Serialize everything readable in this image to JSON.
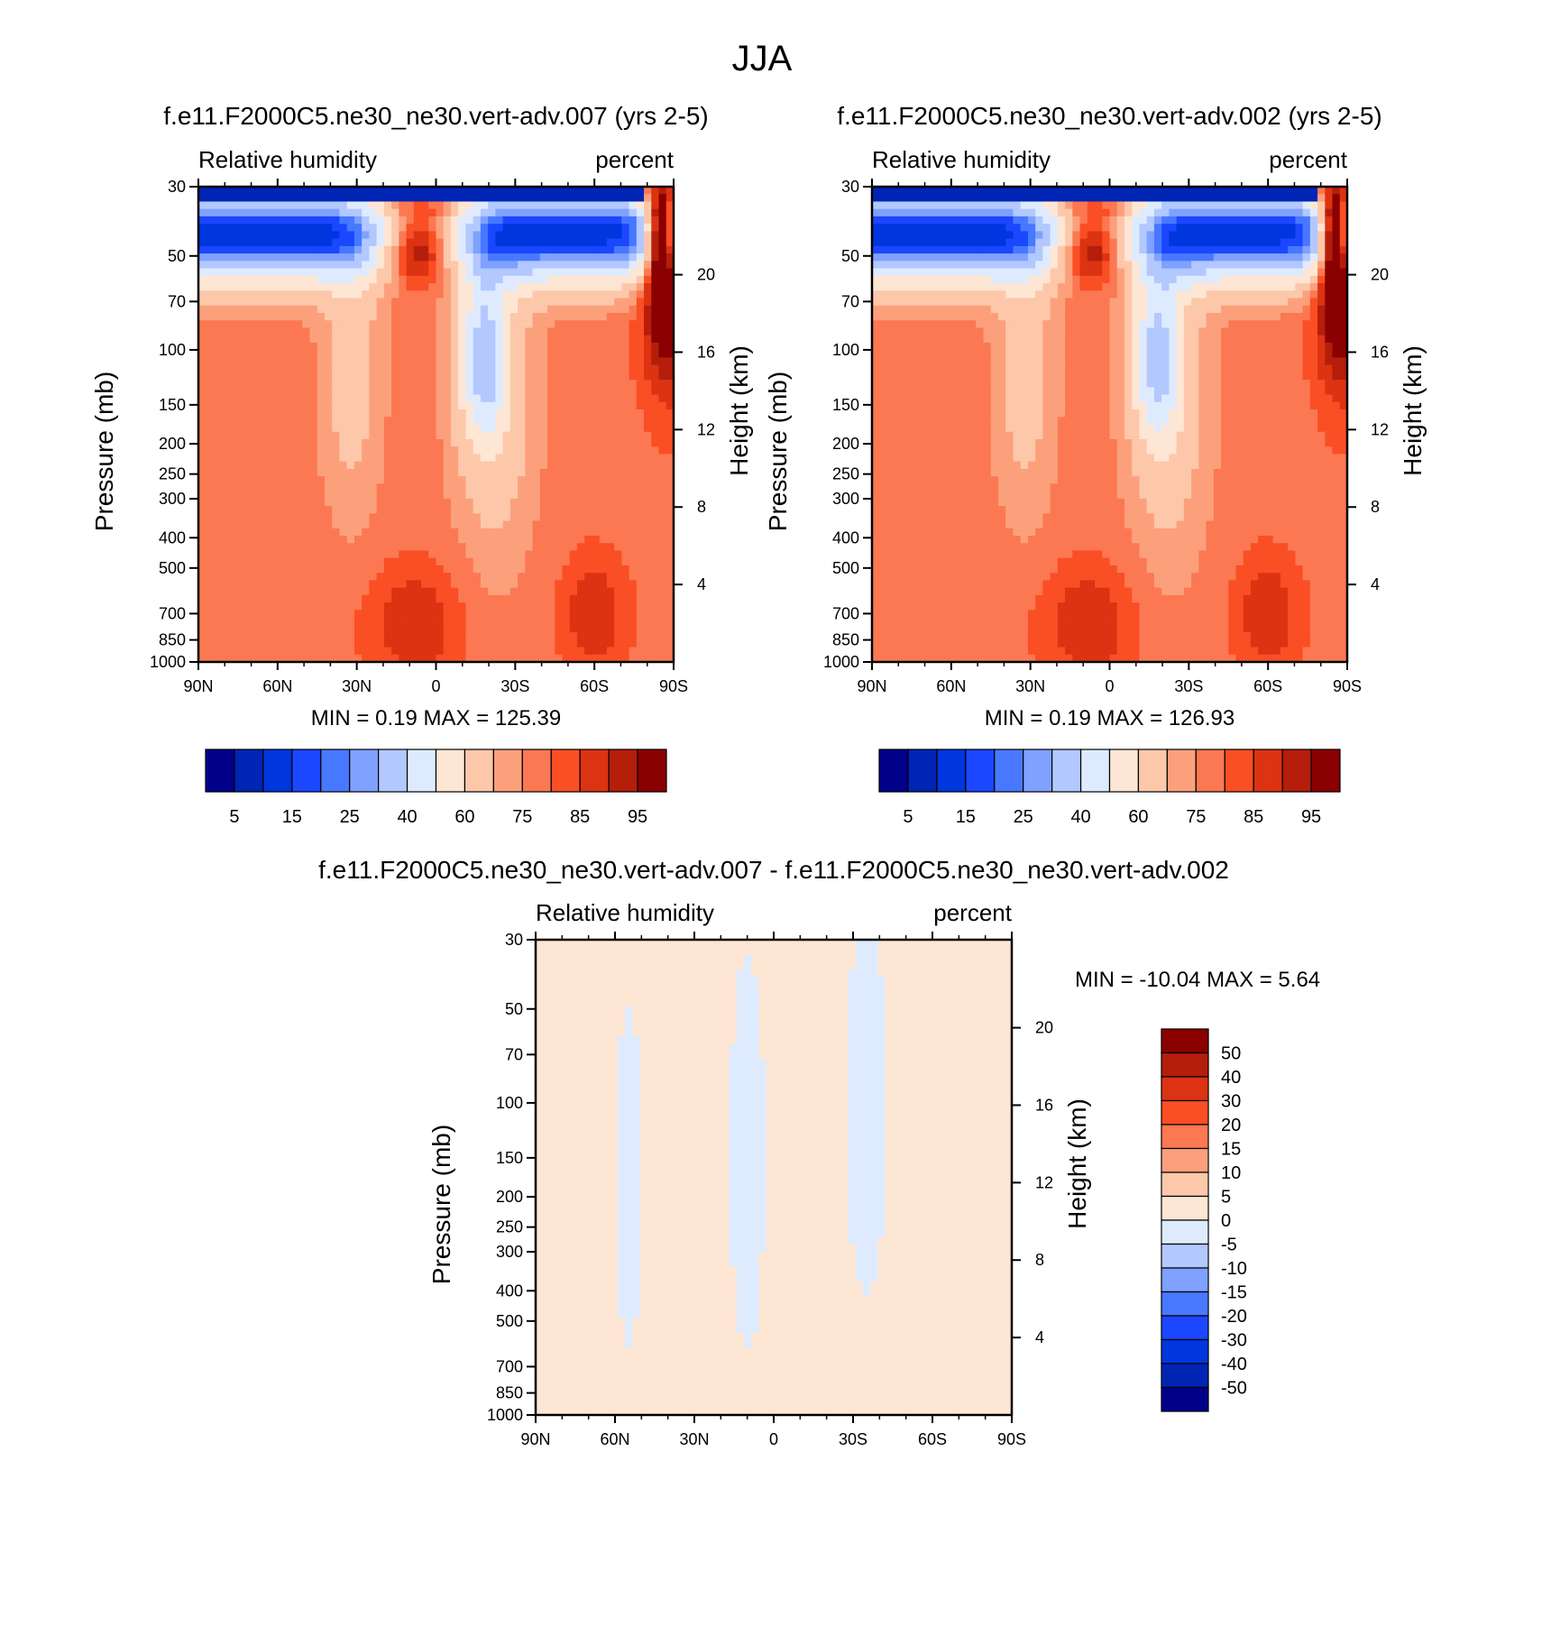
{
  "figure": {
    "title": "JJA"
  },
  "chart_data": [
    {
      "type": "heatmap",
      "title": "f.e11.F2000C5.ne30_ne30.vert-adv.007 (yrs 2-5)",
      "left_string": "Relative humidity",
      "right_string": "percent",
      "ylabel": "Pressure (mb)",
      "ylabel_right": "Height (km)",
      "x_ticks": [
        "90N",
        "60N",
        "30N",
        "0",
        "30S",
        "60S",
        "90S"
      ],
      "x_range": [
        90,
        -90
      ],
      "y_ticks": [
        30,
        50,
        70,
        100,
        150,
        200,
        250,
        300,
        400,
        500,
        700,
        850,
        1000
      ],
      "y_range": [
        1000,
        30
      ],
      "y_scale": "log",
      "height_ticks": [
        20,
        16,
        12,
        8,
        4
      ],
      "stats_text": "MIN =   0.19  MAX = 125.39",
      "min": 0.19,
      "max": 125.39,
      "colorbar": {
        "orientation": "horizontal",
        "labels": [
          "5",
          "15",
          "25",
          "40",
          "60",
          "75",
          "85",
          "95"
        ],
        "colors": [
          "#00008b",
          "#0024b4",
          "#0036de",
          "#1a47ff",
          "#4778ff",
          "#7fa1ff",
          "#b2c8ff",
          "#deebfe",
          "#fee6d4",
          "#fdc7aa",
          "#fca07c",
          "#fb7852",
          "#fa4e25",
          "#dc3312",
          "#b41e0b",
          "#8b0000"
        ]
      },
      "field": "left"
    },
    {
      "type": "heatmap",
      "title": "f.e11.F2000C5.ne30_ne30.vert-adv.002 (yrs 2-5)",
      "left_string": "Relative humidity",
      "right_string": "percent",
      "ylabel": "Pressure (mb)",
      "ylabel_right": "Height (km)",
      "x_ticks": [
        "90N",
        "60N",
        "30N",
        "0",
        "30S",
        "60S",
        "90S"
      ],
      "x_range": [
        90,
        -90
      ],
      "y_ticks": [
        30,
        50,
        70,
        100,
        150,
        200,
        250,
        300,
        400,
        500,
        700,
        850,
        1000
      ],
      "y_range": [
        1000,
        30
      ],
      "y_scale": "log",
      "height_ticks": [
        20,
        16,
        12,
        8,
        4
      ],
      "stats_text": "MIN =   0.19  MAX = 126.93",
      "min": 0.19,
      "max": 126.93,
      "colorbar": {
        "orientation": "horizontal",
        "labels": [
          "5",
          "15",
          "25",
          "40",
          "60",
          "75",
          "85",
          "95"
        ],
        "colors": [
          "#00008b",
          "#0024b4",
          "#0036de",
          "#1a47ff",
          "#4778ff",
          "#7fa1ff",
          "#b2c8ff",
          "#deebfe",
          "#fee6d4",
          "#fdc7aa",
          "#fca07c",
          "#fb7852",
          "#fa4e25",
          "#dc3312",
          "#b41e0b",
          "#8b0000"
        ]
      },
      "field": "right"
    },
    {
      "type": "heatmap",
      "title": "f.e11.F2000C5.ne30_ne30.vert-adv.007 - f.e11.F2000C5.ne30_ne30.vert-adv.002",
      "left_string": "Relative humidity",
      "right_string": "percent",
      "ylabel": "Pressure (mb)",
      "ylabel_right": "Height (km)",
      "x_ticks": [
        "90N",
        "60N",
        "30N",
        "0",
        "30S",
        "60S",
        "90S"
      ],
      "x_range": [
        90,
        -90
      ],
      "y_ticks": [
        30,
        50,
        70,
        100,
        150,
        200,
        250,
        300,
        400,
        500,
        700,
        850,
        1000
      ],
      "y_range": [
        1000,
        30
      ],
      "y_scale": "log",
      "height_ticks": [
        20,
        16,
        12,
        8,
        4
      ],
      "stats_text": "MIN = -10.04  MAX =   5.64",
      "min": -10.04,
      "max": 5.64,
      "colorbar": {
        "orientation": "vertical",
        "labels": [
          "50",
          "40",
          "30",
          "20",
          "15",
          "10",
          "5",
          "0",
          "-5",
          "-10",
          "-15",
          "-20",
          "-30",
          "-40",
          "-50"
        ],
        "colors": [
          "#8b0000",
          "#b41e0b",
          "#dc3312",
          "#fa4e25",
          "#fb7852",
          "#fca07c",
          "#fdc7aa",
          "#fee6d4",
          "#deebfe",
          "#b2c8ff",
          "#7fa1ff",
          "#4778ff",
          "#1a47ff",
          "#0036de",
          "#0024b4",
          "#00008b"
        ]
      },
      "field": "diff"
    }
  ]
}
